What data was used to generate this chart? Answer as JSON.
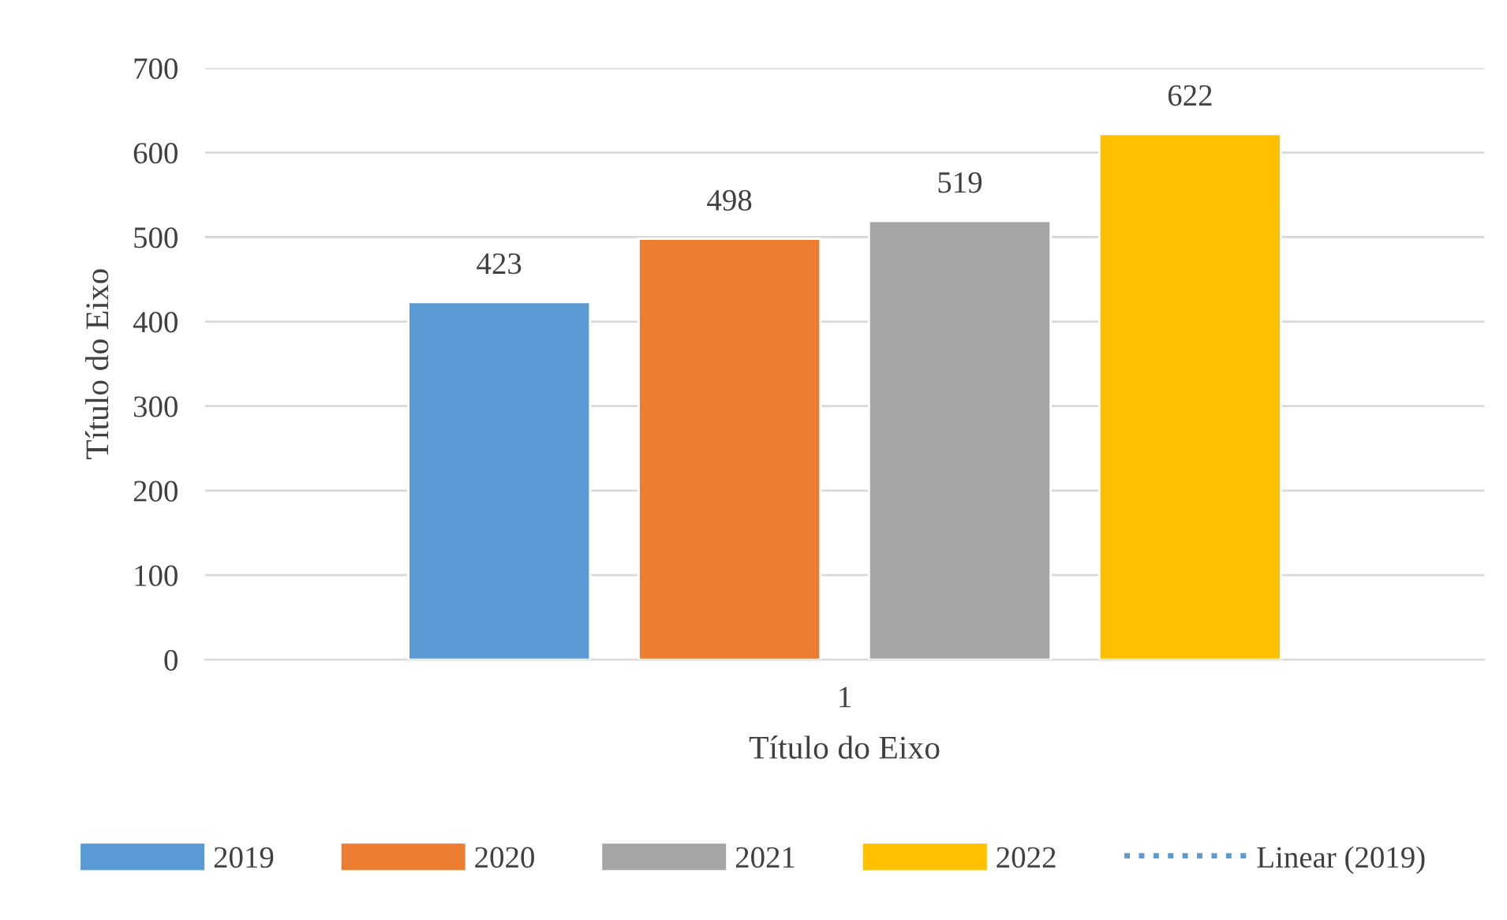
{
  "chart_data": {
    "type": "bar",
    "xlabel": "Título do Eixo",
    "ylabel": "Título do Eixo",
    "categories": [
      "1"
    ],
    "series": [
      {
        "name": "2019",
        "color": "#5b9bd5",
        "values": [
          423
        ]
      },
      {
        "name": "2020",
        "color": "#ed7d31",
        "values": [
          498
        ]
      },
      {
        "name": "2021",
        "color": "#a5a5a5",
        "values": [
          519
        ]
      },
      {
        "name": "2022",
        "color": "#ffc000",
        "values": [
          622
        ]
      },
      {
        "name": "Linear (2019)",
        "type": "line",
        "color": "#5b9bd5",
        "line_style": "dotted",
        "values": [
          null
        ]
      }
    ],
    "ylim": [
      0,
      700
    ],
    "yticks": [
      0,
      100,
      200,
      300,
      400,
      500,
      600,
      700
    ],
    "grid": "y",
    "legend": "bottom",
    "data_labels": true
  }
}
